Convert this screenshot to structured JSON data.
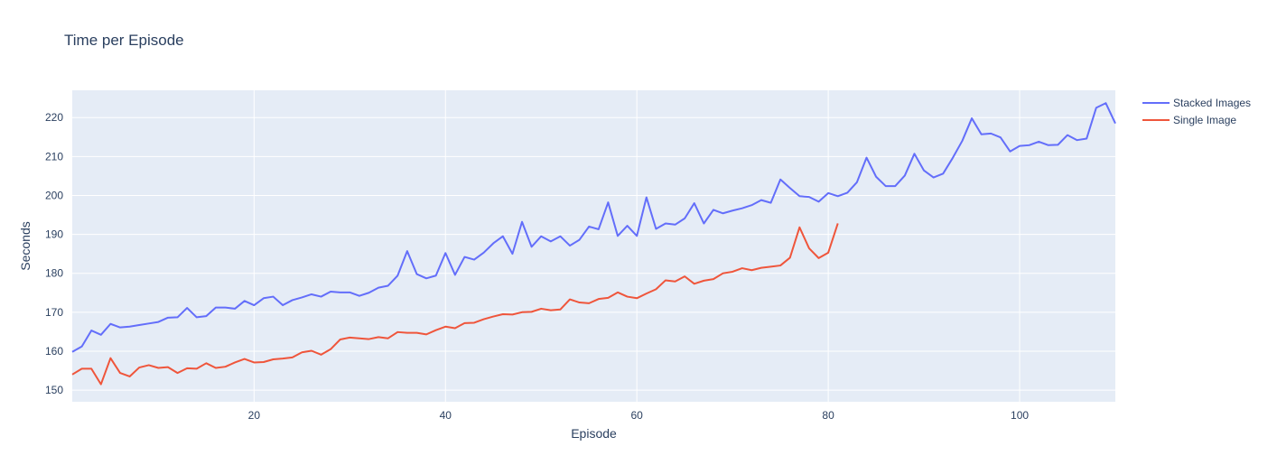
{
  "chart_data": {
    "type": "line",
    "title": "Time per Episode",
    "xlabel": "Episode",
    "ylabel": "Seconds",
    "xlim": [
      1,
      110
    ],
    "ylim": [
      147,
      227
    ],
    "xticks": [
      20,
      40,
      60,
      80,
      100
    ],
    "yticks": [
      150,
      160,
      170,
      180,
      190,
      200,
      210,
      220
    ],
    "grid": true,
    "legend_position": "top-right",
    "background_color": "#e5ecf6",
    "series": [
      {
        "name": "Stacked Images",
        "color": "#636efa",
        "x_start": 1,
        "values": [
          159.8,
          161.2,
          165.3,
          164.2,
          167.0,
          166.1,
          166.3,
          166.7,
          167.1,
          167.5,
          168.6,
          168.7,
          171.1,
          168.7,
          169.0,
          171.2,
          171.2,
          170.9,
          172.9,
          171.8,
          173.6,
          174.0,
          171.8,
          173.1,
          173.8,
          174.6,
          174.0,
          175.3,
          175.1,
          175.1,
          174.2,
          175.0,
          176.3,
          176.8,
          179.4,
          185.7,
          179.8,
          178.7,
          179.4,
          185.2,
          179.6,
          184.2,
          183.5,
          185.3,
          187.7,
          189.5,
          185.0,
          193.2,
          186.8,
          189.5,
          188.2,
          189.5,
          187.1,
          188.6,
          192.0,
          191.3,
          198.2,
          189.6,
          192.2,
          189.6,
          199.5,
          191.4,
          192.8,
          192.5,
          194.1,
          198.0,
          192.8,
          196.3,
          195.4,
          196.1,
          196.7,
          197.5,
          198.8,
          198.1,
          204.1,
          201.9,
          199.8,
          199.6,
          198.4,
          200.6,
          199.8,
          200.7,
          203.4,
          209.7,
          204.8,
          202.4,
          202.4,
          205.1,
          210.7,
          206.4,
          204.6,
          205.6,
          209.6,
          214.0,
          219.8,
          215.7,
          215.9,
          214.9,
          211.3,
          212.7,
          212.9,
          213.8,
          212.9,
          213.0,
          215.5,
          214.2,
          214.6,
          222.5,
          223.7,
          218.5
        ]
      },
      {
        "name": "Single Image",
        "color": "#ef553b",
        "x_start": 1,
        "values": [
          154.0,
          155.5,
          155.5,
          151.5,
          158.2,
          154.4,
          153.5,
          155.8,
          156.4,
          155.7,
          155.9,
          154.4,
          155.6,
          155.5,
          156.9,
          155.7,
          156.0,
          157.1,
          158.0,
          157.1,
          157.2,
          157.9,
          158.1,
          158.4,
          159.7,
          160.1,
          159.1,
          160.5,
          163.0,
          163.5,
          163.3,
          163.1,
          163.6,
          163.3,
          164.9,
          164.7,
          164.7,
          164.3,
          165.4,
          166.3,
          165.9,
          167.2,
          167.3,
          168.2,
          168.9,
          169.5,
          169.4,
          170.0,
          170.1,
          170.9,
          170.5,
          170.7,
          173.3,
          172.5,
          172.3,
          173.4,
          173.7,
          175.1,
          174.0,
          173.6,
          174.8,
          175.9,
          178.2,
          177.9,
          179.2,
          177.3,
          178.1,
          178.5,
          180.0,
          180.4,
          181.3,
          180.8,
          181.4,
          181.7,
          182.0,
          184.0,
          191.8,
          186.4,
          183.9,
          185.3,
          192.8
        ]
      }
    ]
  }
}
